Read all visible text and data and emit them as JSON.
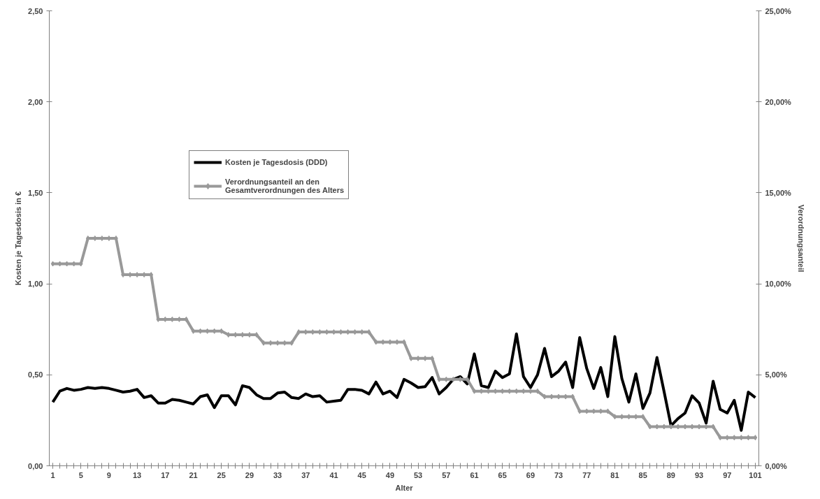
{
  "chart_data": {
    "type": "line",
    "xlabel": "Alter",
    "ylabel": "Kosten je Tagesdosis in €",
    "y2label": "Verordnungsanteil",
    "x": [
      1,
      2,
      3,
      4,
      5,
      6,
      7,
      8,
      9,
      10,
      11,
      12,
      13,
      14,
      15,
      16,
      17,
      18,
      19,
      20,
      21,
      22,
      23,
      24,
      25,
      26,
      27,
      28,
      29,
      30,
      31,
      32,
      33,
      34,
      35,
      36,
      37,
      38,
      39,
      40,
      41,
      42,
      43,
      44,
      45,
      46,
      47,
      48,
      49,
      50,
      51,
      52,
      53,
      54,
      55,
      56,
      57,
      58,
      59,
      60,
      61,
      62,
      63,
      64,
      65,
      66,
      67,
      68,
      69,
      70,
      71,
      72,
      73,
      74,
      75,
      76,
      77,
      78,
      79,
      80,
      81,
      82,
      83,
      84,
      85,
      86,
      87,
      88,
      89,
      90,
      91,
      92,
      93,
      94,
      95,
      96,
      97,
      98,
      99,
      100,
      101
    ],
    "xlim": [
      0.5,
      101.5
    ],
    "xticks": [
      1,
      5,
      9,
      13,
      17,
      21,
      25,
      29,
      33,
      37,
      41,
      45,
      49,
      53,
      57,
      61,
      65,
      69,
      73,
      77,
      81,
      85,
      89,
      93,
      97,
      101
    ],
    "ylim": [
      0,
      2.5
    ],
    "yticks": [
      {
        "value": 0,
        "label": "0,00"
      },
      {
        "value": 0.5,
        "label": "0,50"
      },
      {
        "value": 1,
        "label": "1,00"
      },
      {
        "value": 1.5,
        "label": "1,50"
      },
      {
        "value": 2,
        "label": "2,00"
      },
      {
        "value": 2.5,
        "label": "2,50"
      }
    ],
    "y2lim": [
      0,
      25
    ],
    "y2ticks": [
      {
        "value": 0,
        "label": "0,00%"
      },
      {
        "value": 5,
        "label": "5,00%"
      },
      {
        "value": 10,
        "label": "10,00%"
      },
      {
        "value": 15,
        "label": "15,00%"
      },
      {
        "value": 20,
        "label": "20,00%"
      },
      {
        "value": 25,
        "label": "25,00%"
      }
    ],
    "grid": false,
    "legend": "top left",
    "series": [
      {
        "name": "Kosten je Tagesdosis (DDD)",
        "color": "#000000",
        "marker": "none",
        "values": [
          0.35,
          0.41,
          0.425,
          0.415,
          0.42,
          0.43,
          0.425,
          0.43,
          0.425,
          0.415,
          0.405,
          0.41,
          0.42,
          0.375,
          0.385,
          0.345,
          0.345,
          0.365,
          0.36,
          0.35,
          0.34,
          0.38,
          0.39,
          0.32,
          0.385,
          0.385,
          0.335,
          0.44,
          0.43,
          0.39,
          0.37,
          0.37,
          0.4,
          0.405,
          0.375,
          0.37,
          0.395,
          0.38,
          0.385,
          0.35,
          0.355,
          0.36,
          0.42,
          0.42,
          0.415,
          0.395,
          0.46,
          0.395,
          0.41,
          0.375,
          0.475,
          0.455,
          0.43,
          0.435,
          0.485,
          0.395,
          0.43,
          0.475,
          0.49,
          0.45,
          0.615,
          0.44,
          0.43,
          0.52,
          0.485,
          0.505,
          0.725,
          0.49,
          0.43,
          0.5,
          0.645,
          0.49,
          0.52,
          0.57,
          0.43,
          0.705,
          0.535,
          0.425,
          0.54,
          0.38,
          0.71,
          0.48,
          0.35,
          0.505,
          0.315,
          0.4,
          0.595,
          0.41,
          0.22,
          0.26,
          0.29,
          0.385,
          0.345,
          0.235,
          0.465,
          0.31,
          0.29,
          0.36,
          0.195,
          0.405,
          0.375
        ]
      },
      {
        "name": "Verordnungsanteil an den Gesamtverordnungen des Alters",
        "color": "#999999",
        "marker": "diamond",
        "axis": "y2",
        "values": [
          11.1,
          11.1,
          11.1,
          11.1,
          11.1,
          12.5,
          12.5,
          12.5,
          12.5,
          12.5,
          10.5,
          10.5,
          10.5,
          10.5,
          10.5,
          8.05,
          8.05,
          8.05,
          8.05,
          8.05,
          7.4,
          7.4,
          7.4,
          7.4,
          7.4,
          7.2,
          7.2,
          7.2,
          7.2,
          7.2,
          6.75,
          6.75,
          6.75,
          6.75,
          6.75,
          7.35,
          7.35,
          7.35,
          7.35,
          7.35,
          7.35,
          7.35,
          7.35,
          7.35,
          7.35,
          7.35,
          6.8,
          6.8,
          6.8,
          6.8,
          6.8,
          5.9,
          5.9,
          5.9,
          5.9,
          4.75,
          4.75,
          4.75,
          4.75,
          4.75,
          4.1,
          4.1,
          4.1,
          4.1,
          4.1,
          4.1,
          4.1,
          4.1,
          4.1,
          4.1,
          3.8,
          3.8,
          3.8,
          3.8,
          3.8,
          3.0,
          3.0,
          3.0,
          3.0,
          3.0,
          2.7,
          2.7,
          2.7,
          2.7,
          2.7,
          2.15,
          2.15,
          2.15,
          2.15,
          2.15,
          2.15,
          2.15,
          2.15,
          2.15,
          2.15,
          1.55,
          1.55,
          1.55,
          1.55,
          1.55,
          1.55
        ]
      }
    ]
  }
}
